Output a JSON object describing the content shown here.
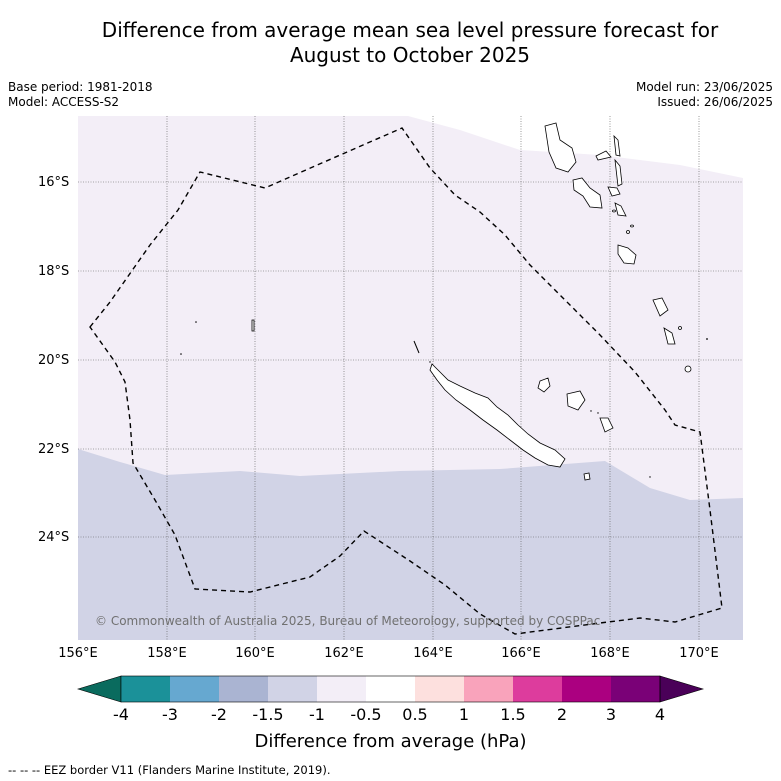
{
  "title_line1": "Difference from average mean sea level pressure forecast for",
  "title_line2": "August to October 2025",
  "base_period": "Base period: 1981-2018",
  "model": "Model: ACCESS-S2",
  "model_run": "Model run: 23/06/2025",
  "issued": "Issued: 26/06/2025",
  "copyright": "© Commonwealth of Australia 2025, Bureau of Meteorology, supported by COSPPac",
  "lat_labels": [
    "16°S",
    "18°S",
    "20°S",
    "22°S",
    "24°S"
  ],
  "lon_labels": [
    "156°E",
    "158°E",
    "160°E",
    "162°E",
    "164°E",
    "166°E",
    "168°E",
    "170°E"
  ],
  "colorbar": {
    "ticks": [
      "-4",
      "-3",
      "-2",
      "-1.5",
      "-1",
      "-0.5",
      "0.5",
      "1",
      "1.5",
      "2",
      "3",
      "4"
    ],
    "colors": [
      "#0a6b5e",
      "#1b9199",
      "#66a8d0",
      "#aab4d2",
      "#d1d3e6",
      "#f3eef7",
      "#ffffff",
      "#fde0de",
      "#f9a3bb",
      "#dd3c9d",
      "#ab0080",
      "#7a0177",
      "#4a0058"
    ],
    "title": "Difference from average (hPa)"
  },
  "footer": "--  --  -- EEZ border V11 (Flanders Marine Institute, 2019)."
}
